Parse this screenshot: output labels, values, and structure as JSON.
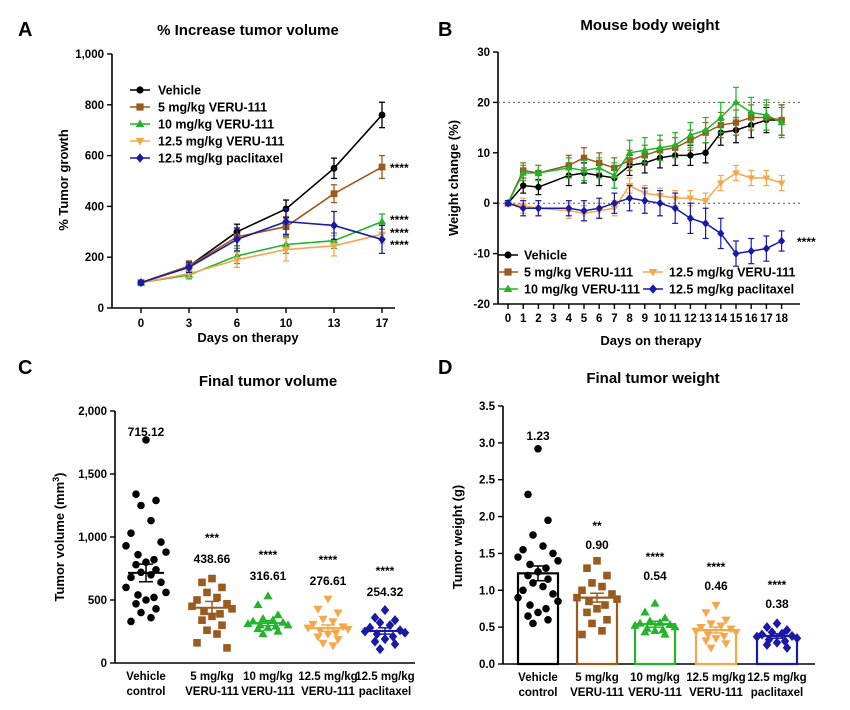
{
  "colors": {
    "vehicle": "#000000",
    "veru5": "#9a5b1e",
    "veru10": "#22b42a",
    "veru125": "#f4a84a",
    "pacli": "#1a1aa6"
  },
  "panelA": {
    "letter": "A",
    "chart_data": {
      "type": "line",
      "title": "% Increase tumor volume",
      "xlabel": "Days on therapy",
      "ylabel": "% Tumor growth",
      "ylim": [
        0,
        1000
      ],
      "x_ticks": [
        "0",
        "3",
        "6",
        "10",
        "13",
        "17"
      ],
      "y_ticks": [
        "0",
        "200",
        "400",
        "600",
        "800",
        "1,000"
      ],
      "legend_position": "top-left",
      "series": [
        {
          "name": "Vehicle",
          "color_key": "vehicle",
          "marker": "circle",
          "y": [
            100,
            165,
            300,
            390,
            550,
            760
          ],
          "err": [
            8,
            20,
            30,
            35,
            40,
            50
          ]
        },
        {
          "name": "5 mg/kg VERU-111",
          "color_key": "veru5",
          "marker": "square",
          "y": [
            100,
            165,
            280,
            320,
            450,
            555
          ],
          "err": [
            8,
            20,
            35,
            40,
            35,
            45
          ]
        },
        {
          "name": "10 mg/kg VERU-111",
          "color_key": "veru10",
          "marker": "triangle",
          "y": [
            100,
            130,
            205,
            250,
            265,
            340
          ],
          "err": [
            8,
            15,
            30,
            35,
            30,
            30
          ]
        },
        {
          "name": "12.5 mg/kg VERU-111",
          "color_key": "veru125",
          "marker": "triangle-down",
          "y": [
            100,
            135,
            190,
            230,
            245,
            290
          ],
          "err": [
            8,
            15,
            30,
            45,
            40,
            35
          ]
        },
        {
          "name": "12.5 mg/kg paclitaxel",
          "color_key": "pacli",
          "marker": "diamond",
          "y": [
            100,
            160,
            270,
            340,
            325,
            270
          ],
          "err": [
            8,
            20,
            45,
            50,
            55,
            55
          ]
        }
      ],
      "significance": [
        "****",
        "****",
        "****",
        "****"
      ]
    }
  },
  "panelB": {
    "letter": "B",
    "chart_data": {
      "type": "line",
      "title": "Mouse body weight",
      "xlabel": "Days on therapy",
      "ylabel": "Weight change (%)",
      "ylim": [
        -20,
        30
      ],
      "x_ticks": [
        "0",
        "1",
        "2",
        "3",
        "4",
        "5",
        "6",
        "7",
        "8",
        "9",
        "10",
        "11",
        "12",
        "13",
        "14",
        "15",
        "16",
        "17",
        "18"
      ],
      "y_ticks": [
        "-20",
        "-10",
        "0",
        "10",
        "20",
        "30"
      ],
      "reference_lines": [
        0,
        20
      ],
      "legend_position": "bottom",
      "x_points": [
        0,
        1,
        2,
        4,
        5,
        6,
        7,
        8,
        9,
        10,
        11,
        12,
        13,
        14,
        15,
        16,
        17,
        18
      ],
      "series": [
        {
          "name": "Vehicle",
          "color_key": "vehicle",
          "marker": "circle",
          "y": [
            0,
            3.5,
            3.2,
            5.5,
            6,
            5.5,
            5,
            7.5,
            8,
            9,
            9.5,
            9.5,
            10,
            14,
            14.5,
            15.5,
            16.5,
            16.5
          ],
          "err": [
            0.5,
            1.5,
            1.5,
            2,
            2,
            2,
            2,
            2,
            2,
            2,
            2,
            2,
            2,
            2.5,
            2.5,
            2.5,
            2.5,
            3
          ]
        },
        {
          "name": "5 mg/kg VERU-111",
          "color_key": "veru5",
          "marker": "square",
          "y": [
            0,
            6.5,
            6,
            7.5,
            9,
            8,
            7,
            8.5,
            9.5,
            10.5,
            11,
            12.5,
            14,
            15.5,
            16,
            17,
            17,
            16.5
          ],
          "err": [
            0.5,
            1.5,
            1.5,
            2,
            2,
            2,
            2,
            2,
            2,
            2,
            2,
            2,
            2,
            2.5,
            2.5,
            2.5,
            2.5,
            3
          ]
        },
        {
          "name": "10 mg/kg VERU-111",
          "color_key": "veru10",
          "marker": "triangle",
          "y": [
            0,
            6,
            6,
            7,
            6.5,
            7,
            5.5,
            10,
            10.5,
            11,
            11.5,
            13.5,
            14.5,
            17,
            20,
            18,
            17.5,
            16
          ],
          "err": [
            0.5,
            1.5,
            1.5,
            2,
            2,
            2,
            2.5,
            2.5,
            2.5,
            2.5,
            2.5,
            2.5,
            2.5,
            3,
            3,
            3,
            3,
            3
          ]
        },
        {
          "name": "12.5 mg/kg VERU-111",
          "color_key": "veru125",
          "marker": "triangle-down",
          "y": [
            0,
            -0.5,
            -1,
            -1.5,
            -2,
            -1.5,
            -1,
            3.5,
            2,
            1.5,
            1,
            1,
            0.5,
            4,
            6,
            5,
            5,
            4
          ],
          "err": [
            0.5,
            1.5,
            1.5,
            1.5,
            1.5,
            1.5,
            1.5,
            1.5,
            1.5,
            1.5,
            1.5,
            1.5,
            1.5,
            1.5,
            1.5,
            1.5,
            1.5,
            1.5
          ]
        },
        {
          "name": "12.5 mg/kg paclitaxel",
          "color_key": "pacli",
          "marker": "diamond",
          "y": [
            0,
            -1,
            -1,
            -1,
            -1.5,
            -1,
            0,
            1,
            0.5,
            0,
            -1,
            -3,
            -4,
            -6,
            -10,
            -9.5,
            -9,
            -7.5
          ],
          "err": [
            0.5,
            1.5,
            1.5,
            1.5,
            2,
            2,
            2,
            2.5,
            2.5,
            2.5,
            3,
            3,
            3,
            3,
            2.5,
            2.5,
            2.5,
            2
          ]
        }
      ],
      "significance": "****"
    }
  },
  "panelC": {
    "letter": "C",
    "chart_data": {
      "type": "scatter",
      "title": "Final tumor volume",
      "ylabel_main": "Tumor volume (mm",
      "ylabel_sup": "3",
      "ylabel_end": ")",
      "ylim": [
        0,
        2000
      ],
      "y_ticks": [
        "0",
        "500",
        "1,000",
        "1,500",
        "2,000"
      ],
      "groups": [
        {
          "label_lines": [
            "Vehicle",
            "control"
          ],
          "color_key": "vehicle",
          "marker": "circle",
          "mean": 715.12,
          "mean_label": "715.12",
          "sig": "",
          "sem": 70,
          "points": [
            1770,
            1340,
            1290,
            1250,
            1130,
            1030,
            960,
            930,
            880,
            860,
            820,
            800,
            780,
            740,
            720,
            700,
            680,
            640,
            600,
            560,
            540,
            520,
            500,
            470,
            430,
            400,
            360,
            330
          ]
        },
        {
          "label_lines": [
            "5 mg/kg",
            "VERU-111"
          ],
          "color_key": "veru5",
          "marker": "square",
          "mean": 438.66,
          "mean_label": "438.66",
          "sig": "***",
          "sem": 50,
          "points": [
            670,
            640,
            600,
            560,
            520,
            500,
            470,
            450,
            430,
            410,
            390,
            370,
            340,
            300,
            260,
            230,
            160,
            120
          ]
        },
        {
          "label_lines": [
            "10 mg/kg",
            "VERU-111"
          ],
          "color_key": "veru10",
          "marker": "triangle",
          "mean": 316.61,
          "mean_label": "316.61",
          "sig": "****",
          "sem": 20,
          "points": [
            530,
            460,
            380,
            350,
            340,
            330,
            320,
            310,
            300,
            300,
            290,
            280,
            270,
            250,
            230
          ]
        },
        {
          "label_lines": [
            "12.5 mg/kg",
            "VERU-111"
          ],
          "color_key": "veru125",
          "marker": "triangle-down",
          "mean": 276.61,
          "mean_label": "276.61",
          "sig": "****",
          "sem": 25,
          "points": [
            510,
            430,
            400,
            350,
            330,
            310,
            290,
            280,
            270,
            260,
            240,
            230,
            210,
            190,
            160,
            140
          ]
        },
        {
          "label_lines": [
            "12.5 mg/kg",
            "paclitaxel"
          ],
          "color_key": "pacli",
          "marker": "diamond",
          "mean": 254.32,
          "mean_label": "254.32",
          "sig": "****",
          "sem": 25,
          "points": [
            420,
            360,
            340,
            320,
            300,
            280,
            260,
            250,
            240,
            230,
            210,
            190,
            170,
            150,
            110
          ]
        }
      ]
    }
  },
  "panelD": {
    "letter": "D",
    "chart_data": {
      "type": "bar",
      "title": "Final tumor weight",
      "ylabel": "Tumor weight (g)",
      "ylim": [
        0,
        3.5
      ],
      "y_ticks": [
        "0.0",
        "0.5",
        "1.0",
        "1.5",
        "2.0",
        "2.5",
        "3.0",
        "3.5"
      ],
      "groups": [
        {
          "label_lines": [
            "Vehicle",
            "control"
          ],
          "color_key": "vehicle",
          "marker": "circle",
          "mean": 1.23,
          "mean_label": "1.23",
          "sig": "",
          "sem": 0.1,
          "points": [
            2.92,
            2.3,
            1.95,
            1.75,
            1.6,
            1.55,
            1.5,
            1.45,
            1.4,
            1.35,
            1.3,
            1.25,
            1.2,
            1.15,
            1.1,
            1.05,
            1.0,
            0.95,
            0.9,
            0.85,
            0.8,
            0.75,
            0.7,
            0.65,
            0.6,
            0.55
          ]
        },
        {
          "label_lines": [
            "5 mg/kg",
            "VERU-111"
          ],
          "color_key": "veru5",
          "marker": "square",
          "mean": 0.9,
          "mean_label": "0.90",
          "sig": "**",
          "sem": 0.06,
          "points": [
            1.4,
            1.3,
            1.2,
            1.1,
            1.05,
            1.0,
            0.95,
            0.9,
            0.88,
            0.85,
            0.8,
            0.75,
            0.7,
            0.6,
            0.55,
            0.45,
            0.4
          ]
        },
        {
          "label_lines": [
            "10 mg/kg",
            "VERU-111"
          ],
          "color_key": "veru10",
          "marker": "triangle",
          "mean": 0.54,
          "mean_label": "0.54",
          "sig": "****",
          "sem": 0.04,
          "points": [
            0.82,
            0.7,
            0.62,
            0.58,
            0.56,
            0.55,
            0.53,
            0.52,
            0.5,
            0.48,
            0.46,
            0.45,
            0.43,
            0.4
          ]
        },
        {
          "label_lines": [
            "12.5 mg/kg",
            "VERU-111"
          ],
          "color_key": "veru125",
          "marker": "triangle-down",
          "mean": 0.46,
          "mean_label": "0.46",
          "sig": "****",
          "sem": 0.04,
          "points": [
            0.8,
            0.7,
            0.6,
            0.55,
            0.52,
            0.5,
            0.48,
            0.45,
            0.43,
            0.4,
            0.38,
            0.35,
            0.32,
            0.28,
            0.22
          ]
        },
        {
          "label_lines": [
            "12.5 mg/kg",
            "paclitaxel"
          ],
          "color_key": "pacli",
          "marker": "diamond",
          "mean": 0.38,
          "mean_label": "0.38",
          "sig": "****",
          "sem": 0.03,
          "points": [
            0.55,
            0.5,
            0.46,
            0.43,
            0.41,
            0.4,
            0.38,
            0.37,
            0.35,
            0.33,
            0.31,
            0.29,
            0.26,
            0.22
          ]
        }
      ]
    }
  }
}
